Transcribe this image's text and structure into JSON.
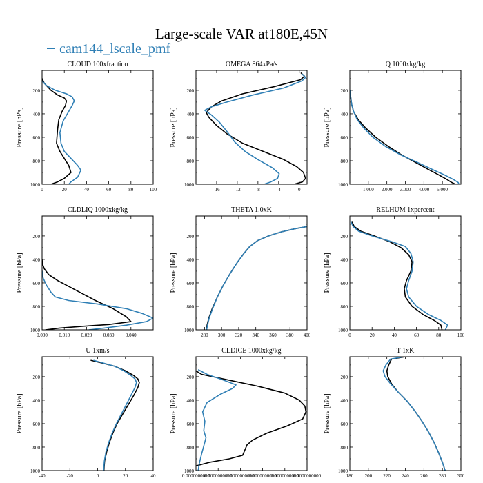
{
  "figure_title": "Large-scale VAR at180E,45N",
  "legend": {
    "label": "cam144_lscale_pmf",
    "color": "#2f7fb5"
  },
  "colors": {
    "obs": "#000000",
    "model": "#2f7fb5"
  },
  "chart_data": [
    {
      "type": "line",
      "title": "CLOUD 100xfraction",
      "ylabel": "Pressure [hPa]",
      "xlim": [
        0,
        100
      ],
      "ylim": [
        1000,
        30
      ],
      "xticks": [
        0,
        20,
        40,
        60,
        80,
        100
      ],
      "xtick_labels": [
        "0",
        "20",
        "40",
        "60",
        "80",
        "100"
      ],
      "yticks": [
        200,
        400,
        600,
        800,
        1000
      ],
      "ytick_labels": [
        "200",
        "400",
        "600",
        "800",
        "1000"
      ],
      "series": [
        {
          "name": "black",
          "color": "#000000",
          "x": [
            0,
            2,
            8,
            14,
            20,
            22,
            21,
            18,
            15,
            14,
            13,
            16,
            20,
            24,
            26,
            20,
            14,
            8
          ],
          "y": [
            100,
            140,
            200,
            240,
            265,
            290,
            330,
            380,
            450,
            530,
            650,
            720,
            780,
            840,
            900,
            950,
            980,
            1000
          ]
        },
        {
          "name": "cam144_lscale_pmf",
          "color": "#2f7fb5",
          "x": [
            0,
            4,
            12,
            22,
            27,
            29,
            27,
            24,
            19,
            16,
            17,
            20,
            26,
            32,
            35,
            32,
            26,
            24
          ],
          "y": [
            120,
            160,
            200,
            230,
            255,
            290,
            330,
            380,
            460,
            560,
            650,
            720,
            780,
            840,
            880,
            940,
            980,
            1000
          ]
        }
      ]
    },
    {
      "type": "line",
      "title": "OMEGA 864xPa/s",
      "ylabel": "Pressure [hPa]",
      "xlim": [
        -20,
        1.5
      ],
      "ylim": [
        1000,
        30
      ],
      "xticks": [
        -16,
        -12,
        -8,
        -4,
        0
      ],
      "xtick_labels": [
        "-16",
        "-12",
        "-8",
        "-4",
        "0"
      ],
      "yticks": [
        200,
        400,
        600,
        800,
        1000
      ],
      "ytick_labels": [
        "200",
        "400",
        "600",
        "800",
        "1000"
      ],
      "series": [
        {
          "name": "black",
          "color": "#000000",
          "x": [
            0.3,
            1.0,
            0.2,
            -5,
            -11,
            -15,
            -17,
            -18,
            -17.5,
            -16,
            -14,
            -11,
            -7,
            -3,
            -0.5,
            0.8,
            1.2,
            0.6,
            -1
          ],
          "y": [
            50,
            80,
            110,
            170,
            230,
            290,
            340,
            390,
            430,
            500,
            570,
            650,
            720,
            790,
            850,
            900,
            950,
            980,
            1000
          ]
        },
        {
          "name": "cam144_lscale_pmf",
          "color": "#2f7fb5",
          "x": [
            0.5,
            1.2,
            0.5,
            -3,
            -9,
            -14,
            -17,
            -18.3,
            -17,
            -15.5,
            -14,
            -12.5,
            -10.5,
            -8,
            -5.2,
            -3.9,
            -4.2,
            -5.5,
            -6.8
          ],
          "y": [
            60,
            90,
            120,
            180,
            240,
            300,
            340,
            370,
            410,
            470,
            550,
            640,
            720,
            790,
            860,
            910,
            950,
            980,
            1000
          ]
        }
      ]
    },
    {
      "type": "line",
      "title": "Q 1000xkg/kg",
      "ylabel": "Pressure [hPa]",
      "xlim": [
        0,
        6
      ],
      "ylim": [
        1000,
        30
      ],
      "xticks": [
        1,
        2,
        3,
        4,
        5
      ],
      "xtick_labels": [
        "1.000",
        "2.000",
        "3.000",
        "4.000",
        "5.000"
      ],
      "yticks": [
        200,
        400,
        600,
        800,
        1000
      ],
      "ytick_labels": [
        "200",
        "400",
        "600",
        "800",
        "1000"
      ],
      "series": [
        {
          "name": "black",
          "color": "#000000",
          "x": [
            0.02,
            0.05,
            0.1,
            0.2,
            0.45,
            0.85,
            1.4,
            2.1,
            2.8,
            3.5,
            4.2,
            4.8,
            5.25,
            5.5,
            5.7
          ],
          "y": [
            200,
            260,
            320,
            380,
            450,
            520,
            600,
            680,
            750,
            810,
            870,
            920,
            960,
            985,
            1000
          ]
        },
        {
          "name": "cam144_lscale_pmf",
          "color": "#2f7fb5",
          "x": [
            0.02,
            0.05,
            0.1,
            0.2,
            0.4,
            0.75,
            1.25,
            1.95,
            2.75,
            3.6,
            4.4,
            5.1,
            5.6,
            5.85,
            5.9
          ],
          "y": [
            200,
            260,
            320,
            380,
            450,
            520,
            600,
            680,
            750,
            810,
            870,
            920,
            960,
            985,
            1000
          ]
        }
      ]
    },
    {
      "type": "line",
      "title": "CLDLIQ 1000xkg/kg",
      "ylabel": "Pressure [hPa]",
      "xlim": [
        0,
        0.05
      ],
      "ylim": [
        1000,
        30
      ],
      "xticks": [
        0,
        0.01,
        0.02,
        0.03,
        0.04
      ],
      "xtick_labels": [
        "0.000",
        "0.010",
        "0.020",
        "0.030",
        "0.040"
      ],
      "yticks": [
        200,
        400,
        600,
        800,
        1000
      ],
      "ytick_labels": [
        "200",
        "400",
        "600",
        "800",
        "1000"
      ],
      "series": [
        {
          "name": "black",
          "color": "#000000",
          "x": [
            0,
            0.0002,
            0.001,
            0.003,
            0.007,
            0.012,
            0.018,
            0.024,
            0.032,
            0.038,
            0.04,
            0.03,
            0.018,
            0.008,
            0.0015
          ],
          "y": [
            400,
            440,
            480,
            530,
            580,
            630,
            690,
            750,
            820,
            890,
            930,
            955,
            970,
            985,
            1000
          ]
        },
        {
          "name": "cam144_lscale_pmf",
          "color": "#2f7fb5",
          "x": [
            0,
            0.0005,
            0.002,
            0.004,
            0.006,
            0.012,
            0.025,
            0.038,
            0.045,
            0.05,
            0.047,
            0.038,
            0.028,
            0.021
          ],
          "y": [
            500,
            560,
            620,
            680,
            720,
            750,
            780,
            820,
            860,
            900,
            930,
            960,
            985,
            1000
          ]
        }
      ]
    },
    {
      "type": "line",
      "title": "THETA 1.0xK",
      "ylabel": "Pressure [hPa]",
      "xlim": [
        270,
        400
      ],
      "ylim": [
        1000,
        30
      ],
      "xticks": [
        280,
        300,
        320,
        340,
        360,
        380,
        400
      ],
      "xtick_labels": [
        "280",
        "300",
        "320",
        "340",
        "360",
        "380",
        "400"
      ],
      "yticks": [
        200,
        400,
        600,
        800,
        1000
      ],
      "ytick_labels": [
        "200",
        "400",
        "600",
        "800",
        "1000"
      ],
      "series": [
        {
          "name": "black",
          "color": "#000000",
          "x": [
            400,
            385,
            370,
            355,
            342,
            333,
            326,
            318,
            310,
            302,
            295,
            289,
            285,
            283,
            282
          ],
          "y": [
            120,
            140,
            165,
            200,
            240,
            290,
            350,
            430,
            520,
            620,
            720,
            820,
            900,
            960,
            1000
          ]
        },
        {
          "name": "cam144_lscale_pmf",
          "color": "#2f7fb5",
          "x": [
            400,
            385,
            370,
            355,
            342,
            333,
            326,
            318,
            310,
            302,
            295,
            289.5,
            285.5,
            283.5,
            282.5
          ],
          "y": [
            120,
            140,
            165,
            200,
            240,
            290,
            350,
            430,
            520,
            620,
            720,
            820,
            900,
            960,
            1000
          ]
        }
      ]
    },
    {
      "type": "line",
      "title": "RELHUM 1xpercent",
      "ylabel": "Pressure [hPa]",
      "xlim": [
        0,
        100
      ],
      "ylim": [
        1000,
        30
      ],
      "xticks": [
        0,
        20,
        40,
        60,
        80,
        100
      ],
      "xtick_labels": [
        "0",
        "20",
        "40",
        "60",
        "80",
        "100"
      ],
      "yticks": [
        200,
        400,
        600,
        800,
        1000
      ],
      "ytick_labels": [
        "200",
        "400",
        "600",
        "800",
        "1000"
      ],
      "series": [
        {
          "name": "black",
          "color": "#000000",
          "x": [
            2,
            4,
            10,
            22,
            36,
            46,
            53,
            56,
            55,
            51,
            49,
            50,
            56,
            66,
            76,
            82,
            83
          ],
          "y": [
            80,
            120,
            160,
            200,
            250,
            300,
            360,
            420,
            500,
            580,
            650,
            720,
            800,
            870,
            920,
            960,
            1000
          ]
        },
        {
          "name": "cam144_lscale_pmf",
          "color": "#2f7fb5",
          "x": [
            1,
            3,
            8,
            20,
            38,
            50,
            55,
            57,
            56,
            53,
            51,
            53,
            60,
            71,
            82,
            88,
            86
          ],
          "y": [
            80,
            120,
            160,
            200,
            250,
            290,
            350,
            420,
            500,
            580,
            650,
            720,
            800,
            870,
            920,
            960,
            1000
          ]
        }
      ]
    },
    {
      "type": "line",
      "title": "U 1xm/s",
      "ylabel": "Pressure [hPa]",
      "xlim": [
        -40,
        40
      ],
      "ylim": [
        1000,
        30
      ],
      "xticks": [
        -40,
        -20,
        0,
        20,
        40
      ],
      "xtick_labels": [
        "-40",
        "-20",
        "0",
        "20",
        "40"
      ],
      "yticks": [
        200,
        400,
        600,
        800,
        1000
      ],
      "ytick_labels": [
        "200",
        "400",
        "600",
        "800",
        "1000"
      ],
      "series": [
        {
          "name": "black",
          "color": "#000000",
          "x": [
            -5,
            2,
            12,
            20,
            26,
            29,
            30,
            29,
            26,
            22,
            18,
            14,
            11,
            8.5,
            6.5,
            5,
            4.5
          ],
          "y": [
            60,
            80,
            110,
            150,
            190,
            220,
            250,
            290,
            360,
            440,
            520,
            600,
            680,
            760,
            840,
            920,
            1000
          ]
        },
        {
          "name": "cam144_lscale_pmf",
          "color": "#2f7fb5",
          "x": [
            -3,
            3,
            12,
            19,
            24,
            27,
            28,
            27,
            24,
            20.5,
            17,
            13.5,
            10.5,
            8,
            6,
            4.8,
            4.3
          ],
          "y": [
            60,
            80,
            110,
            150,
            190,
            220,
            250,
            290,
            360,
            440,
            520,
            600,
            680,
            760,
            840,
            920,
            1000
          ]
        }
      ]
    },
    {
      "type": "line",
      "title": "CLDICE 1000xkg/kg",
      "ylabel": "Pressure [hPa]",
      "xlim": [
        0,
        1
      ],
      "ylim": [
        1000,
        30
      ],
      "xticks": [
        0,
        0.2,
        0.4,
        0.6,
        0.8,
        1.0
      ],
      "xtick_labels": [
        "0.0000000000",
        "0.0000000000",
        "0.0000000000",
        "0.0000000000",
        "0.0000000000",
        "0.0000000000"
      ],
      "yticks": [
        200,
        400,
        600,
        800,
        1000
      ],
      "ytick_labels": [
        "200",
        "400",
        "600",
        "800",
        "1000"
      ],
      "series": [
        {
          "name": "black",
          "color": "#000000",
          "x": [
            0,
            0.05,
            0.25,
            0.55,
            0.8,
            0.93,
            0.98,
            0.99,
            0.96,
            0.82,
            0.64,
            0.51,
            0.46,
            0.42,
            0.3,
            0.12,
            0
          ],
          "y": [
            150,
            180,
            220,
            280,
            340,
            400,
            450,
            500,
            560,
            620,
            680,
            740,
            780,
            870,
            900,
            930,
            960
          ]
        },
        {
          "name": "cam144_lscale_pmf",
          "color": "#2f7fb5",
          "x": [
            0.02,
            0.1,
            0.25,
            0.36,
            0.33,
            0.22,
            0.1,
            0.06,
            0.08,
            0.07,
            0.09,
            0.07,
            0.05,
            0.03,
            0.02
          ],
          "y": [
            140,
            180,
            230,
            270,
            300,
            350,
            420,
            500,
            580,
            660,
            720,
            790,
            860,
            940,
            1000
          ]
        }
      ]
    },
    {
      "type": "line",
      "title": "T 1xK",
      "ylabel": "Pressure [hPa]",
      "xlim": [
        180,
        300
      ],
      "ylim": [
        1000,
        30
      ],
      "xticks": [
        180,
        200,
        220,
        240,
        260,
        280,
        300
      ],
      "xtick_labels": [
        "180",
        "200",
        "220",
        "240",
        "260",
        "280",
        "300"
      ],
      "yticks": [
        200,
        400,
        600,
        800,
        1000
      ],
      "ytick_labels": [
        "200",
        "400",
        "600",
        "800",
        "1000"
      ],
      "series": [
        {
          "name": "black",
          "color": "#000000",
          "x": [
            240,
            225,
            222,
            220,
            221,
            225,
            232,
            242,
            250,
            258,
            265,
            271,
            276,
            280,
            283
          ],
          "y": [
            30,
            50,
            100,
            150,
            200,
            260,
            330,
            410,
            490,
            580,
            670,
            760,
            850,
            930,
            1000
          ]
        },
        {
          "name": "cam144_lscale_pmf",
          "color": "#2f7fb5",
          "x": [
            238,
            224,
            219,
            216,
            218,
            224,
            232,
            242,
            250,
            258,
            265,
            271,
            276,
            280,
            283
          ],
          "y": [
            30,
            50,
            100,
            150,
            200,
            260,
            330,
            410,
            490,
            580,
            670,
            760,
            850,
            930,
            1000
          ]
        }
      ]
    }
  ]
}
